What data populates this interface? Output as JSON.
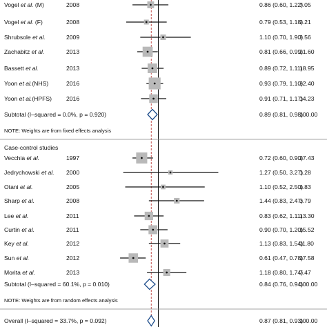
{
  "chart_data": {
    "type": "forest",
    "x_null": 1.0,
    "x_pooled_overall": 0.87,
    "groups": [
      {
        "header": "",
        "studies": [
          {
            "label_pre": "Vogel ",
            "label_etal": "et al.",
            "label_post": " (M)",
            "year": "2008",
            "est": 0.86,
            "lo": 0.6,
            "hi": 1.22,
            "ci_text": "0.86 (0.60, 1.22)",
            "weight": "7.05"
          },
          {
            "label_pre": "Vogel ",
            "label_etal": "et al.",
            "label_post": " (F)",
            "year": "2008",
            "est": 0.79,
            "lo": 0.53,
            "hi": 1.18,
            "ci_text": "0.79 (0.53, 1.18)",
            "weight": "2.21"
          },
          {
            "label_pre": "Shrubsole ",
            "label_etal": "et al.",
            "label_post": "",
            "year": "2009",
            "est": 1.1,
            "lo": 0.7,
            "hi": 1.9,
            "ci_text": "1.10 (0.70, 1.90)",
            "weight": "3.56"
          },
          {
            "label_pre": "Zachabitz ",
            "label_etal": "et al.",
            "label_post": "",
            "year": "2013",
            "est": 0.81,
            "lo": 0.66,
            "hi": 0.99,
            "ci_text": "0.81 (0.66, 0.99)",
            "weight": "21.60"
          },
          {
            "label_pre": "Bassett ",
            "label_etal": "et al.",
            "label_post": "",
            "year": "2013",
            "est": 0.89,
            "lo": 0.72,
            "hi": 1.11,
            "ci_text": "0.89 (0.72, 1.11)",
            "weight": "18.95"
          },
          {
            "label_pre": "Yoon ",
            "label_etal": "et al.",
            "label_post": "(NHS)",
            "year": "2016",
            "est": 0.93,
            "lo": 0.79,
            "hi": 1.1,
            "ci_text": "0.93 (0.79, 1.10)",
            "weight": "32.40"
          },
          {
            "label_pre": "Yoon ",
            "label_etal": "et al.",
            "label_post": "(HPFS)",
            "year": "2016",
            "est": 0.91,
            "lo": 0.71,
            "hi": 1.17,
            "ci_text": "0.91 (0.71, 1.17)",
            "weight": "14.23"
          }
        ],
        "subtotal": {
          "label": "Subtotal  (I–squared = 0.0%, p = 0.920)",
          "est": 0.89,
          "lo": 0.81,
          "hi": 0.98,
          "ci_text": "0.89 (0.81, 0.98)",
          "weight": "100.00"
        },
        "note": "NOTE: Weights are from fixed effects analysis"
      },
      {
        "header": "Case-control studies",
        "studies": [
          {
            "label_pre": "Vecchia ",
            "label_etal": "et al.",
            "label_post": "",
            "year": "1997",
            "est": 0.72,
            "lo": 0.6,
            "hi": 0.9,
            "ci_text": "0.72 (0.60, 0.90)",
            "weight": "27.43"
          },
          {
            "label_pre": "Jedrychowski ",
            "label_etal": "et al.",
            "label_post": "",
            "year": "2000",
            "est": 1.27,
            "lo": 0.5,
            "hi": 3.27,
            "ci_text": "1.27 (0.50, 3.27)",
            "weight": "1.28",
            "arrow": true
          },
          {
            "label_pre": "Otani ",
            "label_etal": "et al.",
            "label_post": "",
            "year": "2005",
            "est": 1.1,
            "lo": 0.52,
            "hi": 2.5,
            "ci_text": "1.10 (0.52, 2.50)",
            "weight": "1.83"
          },
          {
            "label_pre": "Sharp ",
            "label_etal": "et al.",
            "label_post": "",
            "year": "2008",
            "est": 1.44,
            "lo": 0.83,
            "hi": 2.47,
            "ci_text": "1.44 (0.83, 2.47)",
            "weight": "3.79"
          },
          {
            "label_pre": "Lee ",
            "label_etal": "et al.",
            "label_post": "",
            "year": "2011",
            "est": 0.83,
            "lo": 0.62,
            "hi": 1.11,
            "ci_text": "0.83 (0.62, 1.11)",
            "weight": "13.30"
          },
          {
            "label_pre": "Curtin ",
            "label_etal": "et al.",
            "label_post": "",
            "year": "2011",
            "est": 0.9,
            "lo": 0.7,
            "hi": 1.2,
            "ci_text": "0.90 (0.70, 1.20)",
            "weight": "15.52"
          },
          {
            "label_pre": "Key ",
            "label_etal": "et al.",
            "label_post": "",
            "year": "2012",
            "est": 1.13,
            "lo": 0.83,
            "hi": 1.54,
            "ci_text": "1.13 (0.83, 1.54)",
            "weight": "11.80"
          },
          {
            "label_pre": "Sun ",
            "label_etal": "et al.",
            "label_post": "",
            "year": "2012",
            "est": 0.61,
            "lo": 0.47,
            "hi": 0.78,
            "ci_text": "0.61 (0.47, 0.78)",
            "weight": "17.58"
          },
          {
            "label_pre": "Morita ",
            "label_etal": "et al.",
            "label_post": "",
            "year": "2013",
            "est": 1.18,
            "lo": 0.8,
            "hi": 1.74,
            "ci_text": "1.18 (0.80, 1.74)",
            "weight": "7.47"
          }
        ],
        "subtotal": {
          "label": "Subtotal  (I–squared = 60.1%, p = 0.010)",
          "est": 0.84,
          "lo": 0.76,
          "hi": 0.94,
          "ci_text": "0.84 (0.76, 0.94)",
          "weight": "100.00"
        },
        "note": "NOTE: Weights are from random effects analysis"
      }
    ],
    "overall": {
      "label": "Overall  (I–squared = 33.7%, p = 0.092)",
      "est": 0.87,
      "lo": 0.81,
      "hi": 0.93,
      "ci_text": "0.87 (0.81, 0.93)",
      "weight": "100.00"
    },
    "colors": {
      "box": "#b9b9b9",
      "diamond": "#1f4e8c",
      "line": "#111111",
      "dash": "#c0504d",
      "separator": "#888888"
    }
  }
}
